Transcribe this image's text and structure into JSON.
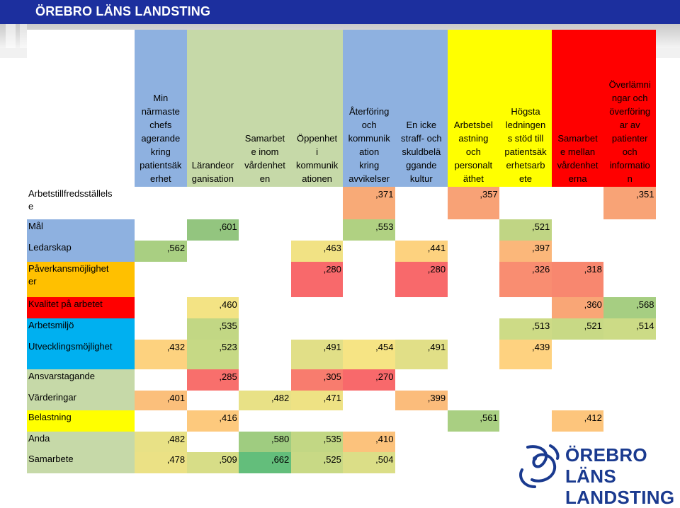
{
  "header": {
    "title": "ÖREBRO LÄNS LANDSTING"
  },
  "table": {
    "row_label_header": "",
    "columns": [
      {
        "label": "Min\nnärmaste\nchefs\nagerande\nkring\npatientsäk\nerhet",
        "color": "#8eb1e0"
      },
      {
        "label": "Lärandeor\nganisation",
        "color": "#c6d9a8"
      },
      {
        "label": "Samarbet\ne inom\nvårdenhet\nen",
        "color": "#c6d9a8"
      },
      {
        "label": "Öppenhet\ni\nkommunik\nationen",
        "color": "#c6d9a8"
      },
      {
        "label": "Återföring\noch\nkommunik\nation\nkring\navvikelser",
        "color": "#8eb1e0"
      },
      {
        "label": "En icke\nstraff- och\nskuldbelä\nggande\nkultur",
        "color": "#8eb1e0"
      },
      {
        "label": "Arbetsbel\nastning\noch\npersonalt\näthet",
        "color": "#ffff00"
      },
      {
        "label": "Högsta\nledningen\ns stöd till\npatientsäk\nerhetsarb\nete",
        "color": "#ffff00"
      },
      {
        "label": "Samarbet\ne mellan\nvårdenhet\nerna",
        "color": "#ff0000"
      },
      {
        "label": "Överlämni\nngar och\növerföring\nar av\npatienter\noch\ninformatio\nn",
        "color": "#ff0000"
      }
    ],
    "rows": [
      {
        "label": "Arbetstillfredsställels\ne",
        "label_color": "#ffffff",
        "cells": [
          "",
          "",
          "",
          "",
          ",371",
          "",
          ",357",
          "",
          "",
          ",351"
        ],
        "colors": [
          "#ffffff",
          "#ffffff",
          "#ffffff",
          "#ffffff",
          "#f8aa77",
          "#ffffff",
          "#f8a276",
          "#ffffff",
          "#ffffff",
          "#f8a376"
        ]
      },
      {
        "label": "Mål",
        "label_color": "#8eb1e0",
        "cells": [
          "",
          ",601",
          "",
          "",
          ",553",
          "",
          "",
          ",521",
          "",
          ""
        ],
        "colors": [
          "#ffffff",
          "#93c57f",
          "#ffffff",
          "#ffffff",
          "#b0d182",
          "#ffffff",
          "#ffffff",
          "#c0d584",
          "#ffffff",
          "#ffffff"
        ]
      },
      {
        "label": "Ledarskap",
        "label_color": "#8eb1e0",
        "cells": [
          ",562",
          "",
          "",
          ",463",
          "",
          ",441",
          "",
          ",397",
          "",
          ""
        ],
        "colors": [
          "#a9cf82",
          "#ffffff",
          "#ffffff",
          "#f1e284",
          "#ffffff",
          "#fdd27f",
          "#ffffff",
          "#fbb77a",
          "#ffffff",
          "#ffffff"
        ]
      },
      {
        "label": "Påverkansmöjlighet\ner",
        "label_color": "#ffc000",
        "cells": [
          "",
          "",
          "",
          ",280",
          "",
          ",280",
          "",
          ",326",
          ",318",
          ""
        ],
        "colors": [
          "#ffffff",
          "#ffffff",
          "#ffffff",
          "#f8696b",
          "#ffffff",
          "#f8696b",
          "#ffffff",
          "#f98d71",
          "#f8876f",
          "#ffffff"
        ]
      },
      {
        "label": "Kvalitet på arbetet",
        "label_color": "#ff0000",
        "cells": [
          "",
          ",460",
          "",
          "",
          "",
          "",
          "",
          "",
          ",360",
          ",568"
        ],
        "colors": [
          "#ffffff",
          "#f3e384",
          "#ffffff",
          "#ffffff",
          "#ffffff",
          "#ffffff",
          "#ffffff",
          "#ffffff",
          "#f9a676",
          "#a6ce82"
        ]
      },
      {
        "label": "Arbetsmiljö",
        "label_color": "#00b0f0",
        "cells": [
          "",
          ",535",
          "",
          "",
          "",
          "",
          "",
          ",513",
          ",521",
          ",514"
        ],
        "colors": [
          "#ffffff",
          "#c2d784",
          "#ffffff",
          "#ffffff",
          "#ffffff",
          "#ffffff",
          "#ffffff",
          "#cddb86",
          "#c8d985",
          "#ccdb86"
        ]
      },
      {
        "label": "Utvecklingsmöjlighet",
        "label_color": "#00b0f0",
        "cells": [
          ",432",
          ",523",
          "",
          ",491",
          ",454",
          ",491",
          "",
          ",439",
          "",
          ""
        ],
        "colors": [
          "#fdd27f",
          "#c6d985",
          "#ffffff",
          "#e1df87",
          "#f6e484",
          "#e1df87",
          "#ffffff",
          "#fed280",
          "#ffffff",
          "#ffffff"
        ]
      },
      {
        "label": "Ansvarstagande",
        "label_color": "#c6d9a8",
        "cells": [
          "",
          ",285",
          "",
          ",305",
          ",270",
          "",
          "",
          "",
          "",
          ""
        ],
        "colors": [
          "#ffffff",
          "#f86f6c",
          "#ffffff",
          "#f87c6e",
          "#f8696b",
          "#ffffff",
          "#ffffff",
          "#ffffff",
          "#ffffff",
          "#ffffff"
        ]
      },
      {
        "label": "Värderingar",
        "label_color": "#c6d9a8",
        "cells": [
          ",401",
          "",
          ",482",
          ",471",
          "",
          ",399",
          "",
          "",
          "",
          ""
        ],
        "colors": [
          "#fbbf7b",
          "#ffffff",
          "#e8e186",
          "#eee284",
          "#ffffff",
          "#fbbc7b",
          "#ffffff",
          "#ffffff",
          "#ffffff",
          "#ffffff"
        ]
      },
      {
        "label": "Belastning",
        "label_color": "#ffff00",
        "cells": [
          "",
          ",416",
          "",
          "",
          "",
          "",
          ",561",
          "",
          ",412",
          ""
        ],
        "colors": [
          "#ffffff",
          "#fdc97d",
          "#ffffff",
          "#ffffff",
          "#ffffff",
          "#ffffff",
          "#a9cf82",
          "#ffffff",
          "#fdc57c",
          "#ffffff"
        ]
      },
      {
        "label": "Anda",
        "label_color": "#c6d9a8",
        "cells": [
          ",482",
          "",
          ",580",
          ",535",
          ",410",
          "",
          "",
          "",
          "",
          ""
        ],
        "colors": [
          "#e8e186",
          "#ffffff",
          "#9fcc80",
          "#c2d784",
          "#fcc27c",
          "#ffffff",
          "#ffffff",
          "#ffffff",
          "#ffffff",
          "#ffffff"
        ]
      },
      {
        "label": "Samarbete",
        "label_color": "#c6d9a8",
        "cells": [
          ",478",
          ",509",
          ",662",
          ",525",
          ",504",
          "",
          "",
          "",
          "",
          ""
        ],
        "colors": [
          "#ebe185",
          "#d7dd87",
          "#63be7b",
          "#c8d985",
          "#dbde87",
          "#ffffff",
          "#ffffff",
          "#ffffff",
          "#ffffff",
          "#ffffff"
        ]
      }
    ]
  },
  "logo": {
    "line1": "ÖREBRO LÄNS",
    "line2": "LANDSTING",
    "color": "#1a3a8f"
  }
}
